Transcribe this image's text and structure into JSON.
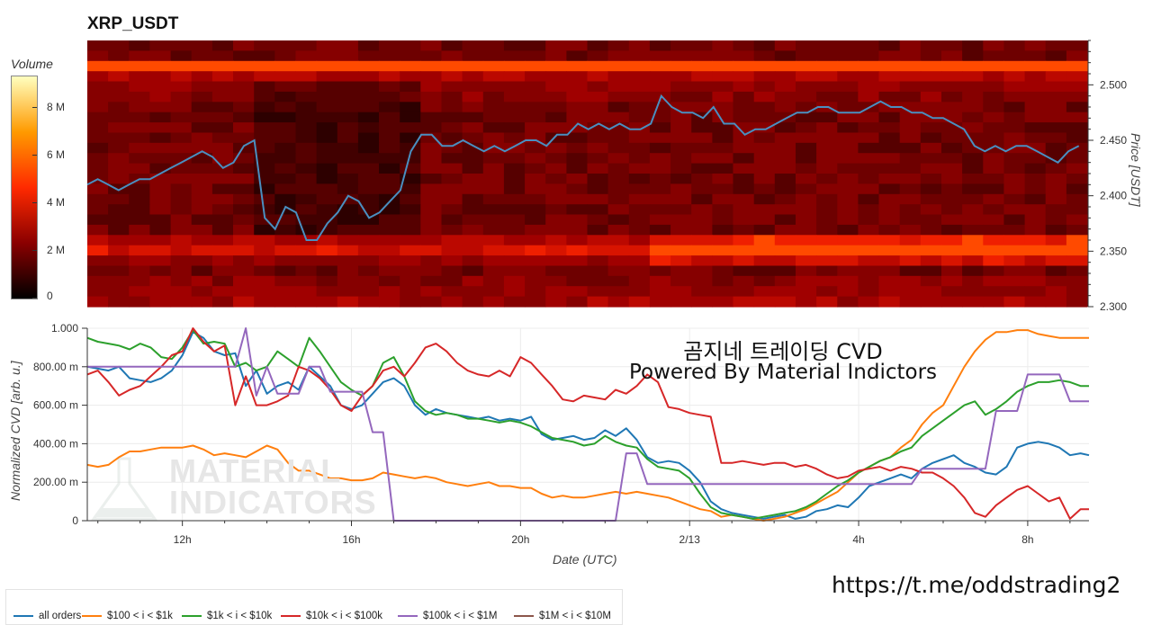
{
  "title": "XRP_USDT",
  "colorbar": {
    "label": "Volume",
    "ticks": [
      "8 M",
      "6 M",
      "4 M",
      "2 M",
      "0"
    ],
    "tick_values": [
      8,
      6,
      4,
      2,
      0
    ],
    "max": 9.3,
    "colors": [
      "#000000",
      "#8a0000",
      "#ff2a00",
      "#ff9a00",
      "#ffffbf"
    ]
  },
  "overlay": {
    "line1": "곰지네 트레이딩 CVD",
    "line2": "Powered By Material Indictors"
  },
  "url": "https://t.me/oddstrading2",
  "watermark": {
    "line1": "MATERIAL",
    "line2": "INDICATORS"
  },
  "chart_data": [
    {
      "type": "heatmap",
      "title": "XRP_USDT",
      "ylabel": "Price [USDT]",
      "ylim": [
        2.3,
        2.54
      ],
      "yticks": [
        "2.500",
        "2.450",
        "2.400",
        "2.350",
        "2.300"
      ],
      "ytick_values": [
        2.5,
        2.45,
        2.4,
        2.35,
        2.3
      ],
      "price_series_color": "#4a8fc0",
      "x_hours": [
        9.5,
        9.75,
        10.0,
        10.25,
        10.5,
        10.75,
        11.0,
        11.25,
        11.5,
        11.75,
        12.0,
        12.25,
        12.5,
        12.75,
        13.0,
        13.25,
        13.5,
        13.75,
        14.0,
        14.25,
        14.5,
        14.75,
        15.0,
        15.25,
        15.5,
        15.75,
        16.0,
        16.25,
        16.5,
        16.75,
        17.0,
        17.25,
        17.5,
        17.75,
        18.0,
        18.25,
        18.5,
        18.75,
        19.0,
        19.25,
        19.5,
        19.75,
        20.0,
        20.25,
        20.5,
        20.75,
        21.0,
        21.25,
        21.5,
        21.75,
        22.0,
        22.25,
        22.5,
        22.75,
        23.0,
        23.25,
        23.5,
        23.75,
        24.0,
        24.25,
        24.5,
        24.75,
        25.0,
        25.25,
        25.5,
        25.75,
        26.0,
        26.25,
        26.5,
        26.75,
        27.0,
        27.25,
        27.5,
        27.75,
        28.0,
        28.25,
        28.5,
        28.75,
        29.0,
        29.25,
        29.5,
        29.75,
        30.0,
        30.25,
        30.5,
        30.75,
        31.0,
        31.25,
        31.5,
        31.75,
        32.0,
        32.25,
        32.5,
        32.75,
        33.0,
        33.25
      ],
      "price": [
        2.41,
        2.415,
        2.41,
        2.405,
        2.41,
        2.415,
        2.415,
        2.42,
        2.425,
        2.43,
        2.435,
        2.44,
        2.435,
        2.425,
        2.43,
        2.445,
        2.45,
        2.38,
        2.37,
        2.39,
        2.385,
        2.36,
        2.36,
        2.375,
        2.385,
        2.4,
        2.395,
        2.38,
        2.385,
        2.395,
        2.405,
        2.44,
        2.455,
        2.455,
        2.445,
        2.445,
        2.45,
        2.445,
        2.44,
        2.445,
        2.44,
        2.445,
        2.45,
        2.45,
        2.445,
        2.455,
        2.455,
        2.465,
        2.46,
        2.465,
        2.46,
        2.465,
        2.46,
        2.46,
        2.465,
        2.49,
        2.48,
        2.475,
        2.475,
        2.47,
        2.48,
        2.465,
        2.465,
        2.455,
        2.46,
        2.46,
        2.465,
        2.47,
        2.475,
        2.475,
        2.48,
        2.48,
        2.475,
        2.475,
        2.475,
        2.48,
        2.485,
        2.48,
        2.48,
        2.475,
        2.475,
        2.47,
        2.47,
        2.465,
        2.46,
        2.445,
        2.44,
        2.445,
        2.44,
        2.445,
        2.445,
        2.44,
        2.435,
        2.43,
        2.44,
        2.445
      ]
    },
    {
      "type": "line",
      "xlabel": "Date (UTC)",
      "ylabel": "Normalized CVD [arb. u.]",
      "ylim": [
        0,
        1
      ],
      "yticks": [
        "0",
        "200.00 m",
        "400.00 m",
        "600.00 m",
        "800.00 m",
        "1.000"
      ],
      "ytick_values": [
        0,
        0.2,
        0.4,
        0.6,
        0.8,
        1.0
      ],
      "xlim_hours": [
        9.75,
        33.45
      ],
      "xticks": [
        "12h",
        "16h",
        "20h",
        "2/13",
        "4h",
        "8h"
      ],
      "xtick_hours": [
        12,
        16,
        20,
        24,
        28,
        32
      ],
      "grid": true,
      "legend_position": "bottom",
      "x_hours": [
        9.75,
        10.0,
        10.25,
        10.5,
        10.75,
        11.0,
        11.25,
        11.5,
        11.75,
        12.0,
        12.25,
        12.5,
        12.75,
        13.0,
        13.25,
        13.5,
        13.75,
        14.0,
        14.25,
        14.5,
        14.75,
        15.0,
        15.25,
        15.5,
        15.75,
        16.0,
        16.25,
        16.5,
        16.75,
        17.0,
        17.25,
        17.5,
        17.75,
        18.0,
        18.25,
        18.5,
        18.75,
        19.0,
        19.25,
        19.5,
        19.75,
        20.0,
        20.25,
        20.5,
        20.75,
        21.0,
        21.25,
        21.5,
        21.75,
        22.0,
        22.25,
        22.5,
        22.75,
        23.0,
        23.25,
        23.5,
        23.75,
        24.0,
        24.25,
        24.5,
        24.75,
        25.0,
        25.25,
        25.5,
        25.75,
        26.0,
        26.25,
        26.5,
        26.75,
        27.0,
        27.25,
        27.5,
        27.75,
        28.0,
        28.25,
        28.5,
        28.75,
        29.0,
        29.25,
        29.5,
        29.75,
        30.0,
        30.25,
        30.5,
        30.75,
        31.0,
        31.25,
        31.5,
        31.75,
        32.0,
        32.25,
        32.5,
        32.75,
        33.0,
        33.25,
        33.45
      ],
      "series": [
        {
          "name": "all orders",
          "color": "#1f77b4",
          "values": [
            0.8,
            0.79,
            0.78,
            0.8,
            0.74,
            0.73,
            0.72,
            0.74,
            0.78,
            0.86,
            0.98,
            0.95,
            0.88,
            0.86,
            0.87,
            0.7,
            0.78,
            0.66,
            0.7,
            0.72,
            0.68,
            0.8,
            0.75,
            0.7,
            0.6,
            0.58,
            0.6,
            0.66,
            0.72,
            0.74,
            0.7,
            0.6,
            0.55,
            0.58,
            0.56,
            0.55,
            0.54,
            0.53,
            0.54,
            0.52,
            0.53,
            0.52,
            0.54,
            0.45,
            0.42,
            0.43,
            0.44,
            0.42,
            0.43,
            0.47,
            0.44,
            0.48,
            0.42,
            0.33,
            0.3,
            0.31,
            0.3,
            0.26,
            0.2,
            0.1,
            0.06,
            0.04,
            0.03,
            0.02,
            0.01,
            0.02,
            0.03,
            0.01,
            0.02,
            0.05,
            0.06,
            0.08,
            0.07,
            0.12,
            0.18,
            0.2,
            0.22,
            0.24,
            0.22,
            0.27,
            0.3,
            0.32,
            0.34,
            0.3,
            0.28,
            0.25,
            0.24,
            0.28,
            0.38,
            0.4,
            0.41,
            0.4,
            0.38,
            0.34,
            0.35,
            0.34
          ]
        },
        {
          "name": "$100 < i < $1k",
          "color": "#ff7f0e",
          "values": [
            0.29,
            0.28,
            0.29,
            0.33,
            0.36,
            0.36,
            0.37,
            0.38,
            0.38,
            0.38,
            0.39,
            0.37,
            0.34,
            0.35,
            0.34,
            0.33,
            0.36,
            0.39,
            0.37,
            0.3,
            0.26,
            0.26,
            0.24,
            0.22,
            0.22,
            0.21,
            0.21,
            0.22,
            0.25,
            0.24,
            0.23,
            0.22,
            0.23,
            0.22,
            0.2,
            0.19,
            0.18,
            0.19,
            0.2,
            0.18,
            0.18,
            0.17,
            0.17,
            0.14,
            0.12,
            0.13,
            0.12,
            0.12,
            0.13,
            0.14,
            0.15,
            0.14,
            0.15,
            0.14,
            0.13,
            0.12,
            0.1,
            0.08,
            0.06,
            0.05,
            0.02,
            0.03,
            0.02,
            0.01,
            0.0,
            0.01,
            0.02,
            0.04,
            0.06,
            0.09,
            0.12,
            0.15,
            0.2,
            0.25,
            0.28,
            0.31,
            0.33,
            0.38,
            0.42,
            0.5,
            0.56,
            0.6,
            0.7,
            0.8,
            0.88,
            0.94,
            0.98,
            0.98,
            0.99,
            0.99,
            0.97,
            0.96,
            0.95,
            0.95,
            0.95,
            0.95
          ]
        },
        {
          "name": "$1k < i < $10k",
          "color": "#2ca02c",
          "values": [
            0.95,
            0.93,
            0.92,
            0.91,
            0.89,
            0.92,
            0.9,
            0.85,
            0.84,
            0.9,
            0.99,
            0.92,
            0.93,
            0.92,
            0.8,
            0.82,
            0.78,
            0.8,
            0.88,
            0.84,
            0.8,
            0.95,
            0.88,
            0.8,
            0.72,
            0.68,
            0.65,
            0.7,
            0.82,
            0.85,
            0.75,
            0.62,
            0.57,
            0.55,
            0.56,
            0.55,
            0.53,
            0.53,
            0.52,
            0.51,
            0.52,
            0.51,
            0.49,
            0.46,
            0.43,
            0.42,
            0.41,
            0.39,
            0.4,
            0.44,
            0.41,
            0.39,
            0.38,
            0.32,
            0.28,
            0.27,
            0.26,
            0.22,
            0.14,
            0.07,
            0.04,
            0.03,
            0.02,
            0.01,
            0.02,
            0.03,
            0.04,
            0.05,
            0.07,
            0.1,
            0.14,
            0.18,
            0.21,
            0.25,
            0.28,
            0.31,
            0.33,
            0.36,
            0.38,
            0.44,
            0.48,
            0.52,
            0.56,
            0.6,
            0.62,
            0.55,
            0.58,
            0.62,
            0.67,
            0.7,
            0.72,
            0.72,
            0.73,
            0.72,
            0.7,
            0.7
          ]
        },
        {
          "name": "$10k < i < $100k",
          "color": "#d62728",
          "values": [
            0.76,
            0.78,
            0.72,
            0.65,
            0.68,
            0.7,
            0.75,
            0.8,
            0.86,
            0.88,
            1.0,
            0.93,
            0.88,
            0.91,
            0.6,
            0.75,
            0.6,
            0.6,
            0.62,
            0.65,
            0.8,
            0.78,
            0.74,
            0.68,
            0.6,
            0.57,
            0.65,
            0.7,
            0.78,
            0.8,
            0.75,
            0.82,
            0.9,
            0.92,
            0.88,
            0.82,
            0.78,
            0.76,
            0.75,
            0.78,
            0.75,
            0.85,
            0.82,
            0.76,
            0.7,
            0.63,
            0.62,
            0.65,
            0.64,
            0.63,
            0.68,
            0.66,
            0.7,
            0.76,
            0.72,
            0.59,
            0.58,
            0.56,
            0.55,
            0.54,
            0.3,
            0.3,
            0.31,
            0.3,
            0.29,
            0.3,
            0.3,
            0.28,
            0.29,
            0.27,
            0.24,
            0.22,
            0.23,
            0.26,
            0.27,
            0.28,
            0.26,
            0.28,
            0.27,
            0.25,
            0.25,
            0.22,
            0.18,
            0.12,
            0.04,
            0.02,
            0.08,
            0.12,
            0.16,
            0.18,
            0.14,
            0.1,
            0.12,
            0.01,
            0.06,
            0.06
          ]
        },
        {
          "name": "$100k < i < $1M",
          "color": "#9467bd",
          "values": [
            0.8,
            0.8,
            0.8,
            0.8,
            0.8,
            0.8,
            0.8,
            0.8,
            0.8,
            0.8,
            0.8,
            0.8,
            0.8,
            0.8,
            0.8,
            1.0,
            0.65,
            0.8,
            0.66,
            0.66,
            0.66,
            0.8,
            0.8,
            0.67,
            0.67,
            0.67,
            0.67,
            0.46,
            0.46,
            0.0,
            0.0,
            0.0,
            0.0,
            0.0,
            0.0,
            0.0,
            0.0,
            0.0,
            0.0,
            0.0,
            0.0,
            0.0,
            0.0,
            0.0,
            0.0,
            0.0,
            0.0,
            0.0,
            0.0,
            0.0,
            0.0,
            0.35,
            0.35,
            0.19,
            0.19,
            0.19,
            0.19,
            0.19,
            0.19,
            0.19,
            0.19,
            0.19,
            0.19,
            0.19,
            0.19,
            0.19,
            0.19,
            0.19,
            0.19,
            0.19,
            0.19,
            0.19,
            0.19,
            0.19,
            0.19,
            0.19,
            0.19,
            0.19,
            0.19,
            0.27,
            0.27,
            0.27,
            0.27,
            0.27,
            0.27,
            0.27,
            0.57,
            0.57,
            0.57,
            0.76,
            0.76,
            0.76,
            0.76,
            0.62,
            0.62,
            0.62
          ]
        },
        {
          "name": "$1M < i < $10M",
          "color": "#8c564b",
          "values": []
        }
      ]
    }
  ]
}
